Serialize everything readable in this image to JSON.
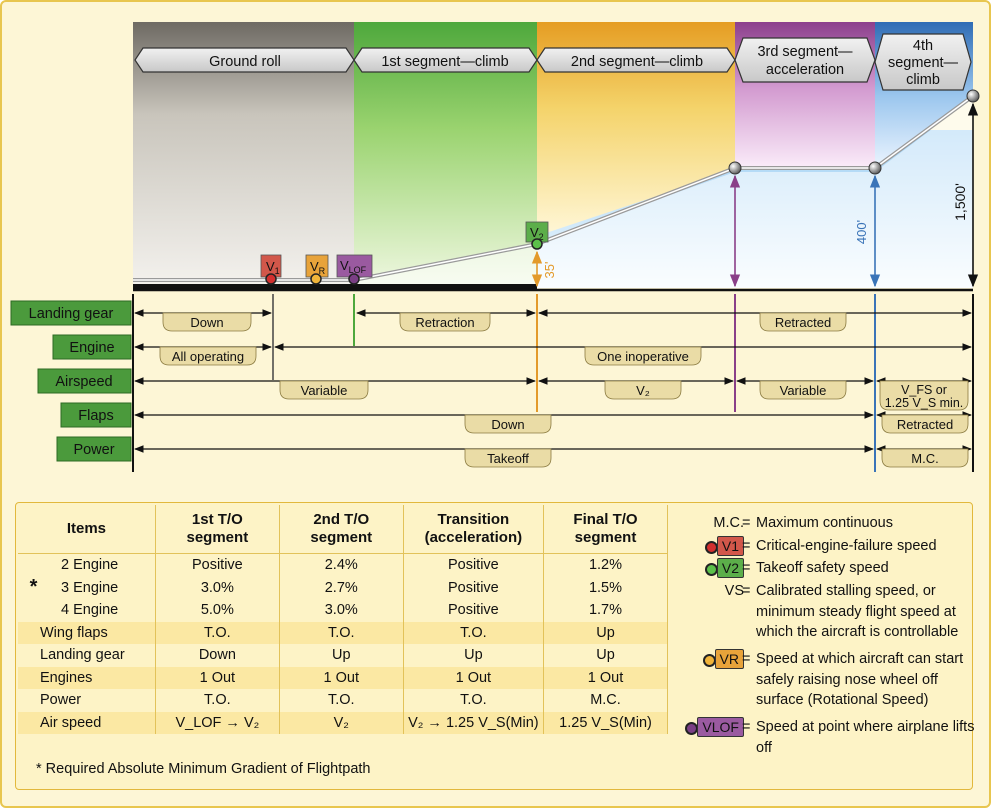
{
  "phases": {
    "ground_roll": "Ground roll",
    "seg1": "1st segment—climb",
    "seg2": "2nd segment—climb",
    "seg3_line1": "3rd segment—",
    "seg3_line2": "acceleration",
    "seg4_line1": "4th",
    "seg4_line2": "segment—",
    "seg4_line3": "climb"
  },
  "markers": {
    "v1": "V",
    "v1_sub": "1",
    "vr": "V",
    "vr_sub": "R",
    "vlof": "V",
    "vlof_sub": "LOF",
    "v2": "V",
    "v2_sub": "2"
  },
  "altitudes": {
    "a35": "35'",
    "a400": "400'",
    "a1500": "1,500'"
  },
  "rows": [
    {
      "label": "Landing gear",
      "values": [
        "Down",
        "Retraction",
        "Retracted"
      ]
    },
    {
      "label": "Engine",
      "values": [
        "All operating",
        "One inoperative"
      ]
    },
    {
      "label": "Airspeed",
      "values": [
        "Variable",
        "V₂",
        "Variable",
        "V_FS or",
        "1.25 V_S min."
      ]
    },
    {
      "label": "Flaps",
      "values": [
        "Down",
        "Retracted"
      ]
    },
    {
      "label": "Power",
      "values": [
        "Takeoff",
        "M.C."
      ]
    }
  ],
  "table": {
    "headers": [
      "Items",
      "1st T/O segment",
      "2nd T/O segment",
      "Transition (acceleration)",
      "Final T/O segment"
    ],
    "header_lines": [
      [
        "Items"
      ],
      [
        "1st T/O",
        "segment"
      ],
      [
        "2nd T/O",
        "segment"
      ],
      [
        "Transition",
        "(acceleration)"
      ],
      [
        "Final T/O",
        "segment"
      ]
    ],
    "engine_rows": [
      [
        "2 Engine",
        "Positive",
        "2.4%",
        "Positive",
        "1.2%"
      ],
      [
        "3 Engine",
        "3.0%",
        "2.7%",
        "Positive",
        "1.5%"
      ],
      [
        "4 Engine",
        "5.0%",
        "3.0%",
        "Positive",
        "1.7%"
      ]
    ],
    "star": "*",
    "rows": [
      [
        "Wing flaps",
        "T.O.",
        "T.O.",
        "T.O.",
        "Up"
      ],
      [
        "Landing gear",
        "Down",
        "Up",
        "Up",
        "Up"
      ],
      [
        "Engines",
        "1 Out",
        "1 Out",
        "1 Out",
        "1 Out"
      ],
      [
        "Power",
        "T.O.",
        "T.O.",
        "T.O.",
        "M.C."
      ]
    ],
    "airspeed_label": "Air speed",
    "airspeed_values": [
      "V_LOF → V₂",
      "V₂",
      "V₂ → 1.25 V_S(Min)",
      "1.25 V_S(Min)"
    ],
    "footnote": "* Required Absolute Minimum Gradient of Flightpath"
  },
  "legend": [
    {
      "key": "M.C.",
      "desc": "Maximum continuous"
    },
    {
      "key": "V1",
      "desc": "Critical-engine-failure speed"
    },
    {
      "key": "V2",
      "desc": "Takeoff safety speed"
    },
    {
      "key": "VS",
      "desc": "Calibrated stalling speed, or minimum steady flight speed at which the aircraft is controllable"
    },
    {
      "key": "VR",
      "desc": "Speed at which aircraft can start safely raising nose wheel off surface (Rotational Speed)"
    },
    {
      "key": "VLOF",
      "desc": "Speed at point where airplane lifts off"
    }
  ],
  "colors": {
    "v1": "#d2574a",
    "vr": "#e8a33a",
    "vlof": "#9a5aa0",
    "v2": "#5cae4a",
    "gear_label": "#4b9a3c"
  }
}
